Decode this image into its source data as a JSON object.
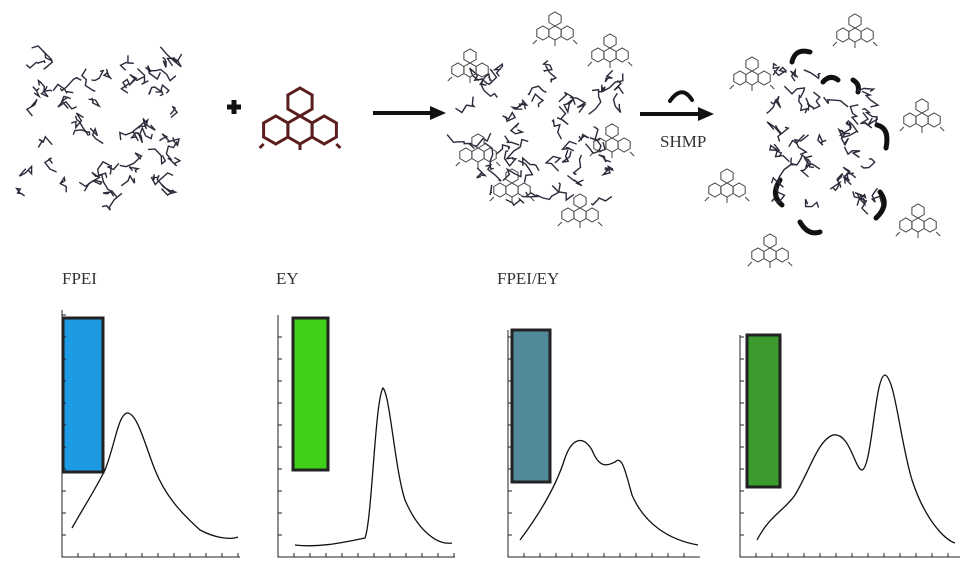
{
  "spectra_labels": [
    "FPEI",
    "EY",
    "FPEI/EY"
  ],
  "reagent_label": "SHMP"
}
